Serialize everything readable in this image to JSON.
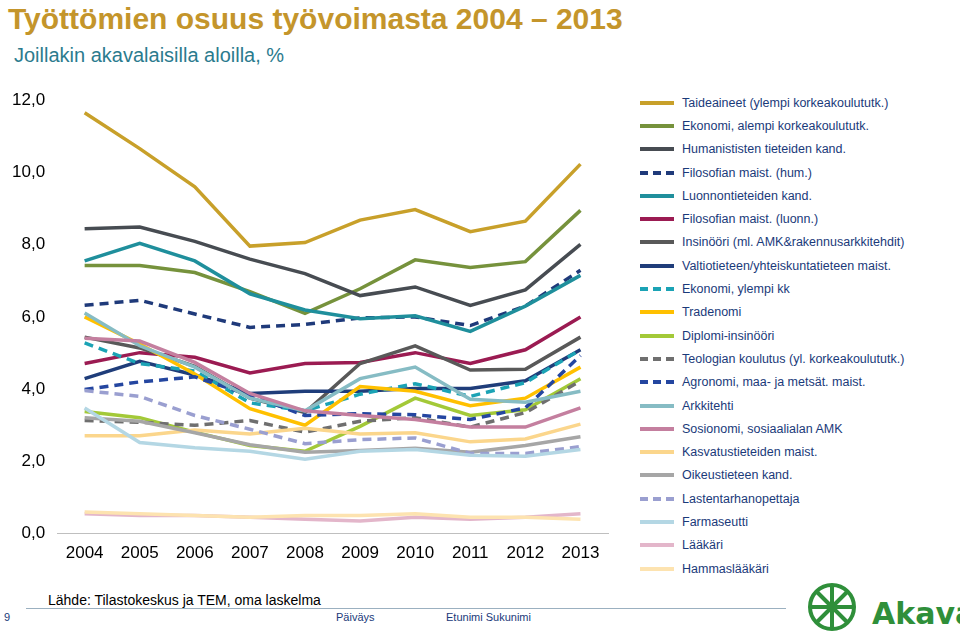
{
  "chart_data": {
    "type": "line",
    "title": "Työttömien osuus työvoimasta 2004 – 2013",
    "subtitle": "Joillakin akavalaisilla aloilla, %",
    "source": "Lähde: Tilastokeskus ja TEM, oma laskelma",
    "categories": [
      "2004",
      "2005",
      "2006",
      "2007",
      "2008",
      "2009",
      "2010",
      "2011",
      "2012",
      "2013"
    ],
    "ylim": [
      0,
      12
    ],
    "yticks": [
      {
        "value": 0,
        "label": "0,0"
      },
      {
        "value": 2,
        "label": "2,0"
      },
      {
        "value": 4,
        "label": "4,0"
      },
      {
        "value": 6,
        "label": "6,0"
      },
      {
        "value": 8,
        "label": "8,0"
      },
      {
        "value": 10,
        "label": "10,0"
      },
      {
        "value": 12,
        "label": "12,0"
      }
    ],
    "grid": false,
    "legend": "right",
    "series": [
      {
        "name": "Taideaineet (ylempi korkeakoulututk.)",
        "color": "#c8a02a",
        "line_style": "solid",
        "values": [
          11.65,
          10.66,
          9.6,
          7.96,
          8.06,
          8.68,
          8.97,
          8.36,
          8.65,
          10.23
        ]
      },
      {
        "name": "Ekonomi, alempi korkeakoulututk.",
        "color": "#76923c",
        "line_style": "solid",
        "values": [
          7.42,
          7.42,
          7.23,
          6.7,
          6.1,
          6.78,
          7.58,
          7.37,
          7.53,
          8.95
        ]
      },
      {
        "name": "Humanististen tieteiden kand.",
        "color": "#474c52",
        "line_style": "solid",
        "values": [
          8.44,
          8.49,
          8.09,
          7.6,
          7.2,
          6.59,
          6.83,
          6.32,
          6.75,
          8.01
        ]
      },
      {
        "name": "Filosofian maist. (hum.)",
        "color": "#1f3a7a",
        "line_style": "dashed",
        "values": [
          6.32,
          6.46,
          6.08,
          5.71,
          5.79,
          5.97,
          6.0,
          5.76,
          6.3,
          7.29
        ]
      },
      {
        "name": "Luonnontieteiden kand.",
        "color": "#1f8f9c",
        "line_style": "solid",
        "values": [
          7.55,
          8.04,
          7.55,
          6.64,
          6.19,
          5.95,
          6.03,
          5.6,
          6.3,
          7.15
        ]
      },
      {
        "name": "Filosofian maist. (luonn.)",
        "color": "#9b1b52",
        "line_style": "solid",
        "values": [
          4.71,
          5.01,
          4.88,
          4.45,
          4.71,
          4.74,
          5.01,
          4.71,
          5.09,
          6.0
        ]
      },
      {
        "name": "Insinööri (ml. AMK&rakennusarkkitehdit)",
        "color": "#595959",
        "line_style": "solid",
        "values": [
          5.44,
          5.14,
          4.63,
          3.75,
          3.35,
          4.71,
          5.2,
          4.53,
          4.55,
          5.44
        ]
      },
      {
        "name": "Valtiotieteen/yhteiskuntatieteen maist.",
        "color": "#1f3d7a",
        "line_style": "solid",
        "values": [
          4.29,
          4.77,
          4.39,
          3.88,
          3.94,
          3.94,
          4.02,
          4.02,
          4.23,
          5.09
        ]
      },
      {
        "name": "Ekonomi, ylempi kk",
        "color": "#1ba3b5",
        "line_style": "dashed",
        "values": [
          5.28,
          4.71,
          4.5,
          3.62,
          3.4,
          3.86,
          4.15,
          3.8,
          4.18,
          5.09
        ]
      },
      {
        "name": "Tradenomi",
        "color": "#ffc000",
        "line_style": "solid",
        "values": [
          6.0,
          5.25,
          4.42,
          3.46,
          3.0,
          4.07,
          3.94,
          3.54,
          3.75,
          4.61
        ]
      },
      {
        "name": "Diplomi-insinööri",
        "color": "#a3c938",
        "line_style": "solid",
        "values": [
          3.38,
          3.21,
          2.81,
          2.44,
          2.28,
          2.97,
          3.75,
          3.27,
          3.43,
          4.29
        ]
      },
      {
        "name": "Teologian koulutus (yl. korkeakoulututk.)",
        "color": "#6f6f6f",
        "line_style": "dashed",
        "values": [
          3.13,
          3.08,
          3.0,
          3.13,
          2.81,
          3.11,
          3.21,
          2.95,
          3.35,
          4.23
        ]
      },
      {
        "name": "Agronomi, maa- ja metsät. maist.",
        "color": "#2446a0",
        "line_style": "dashed",
        "values": [
          3.99,
          4.2,
          4.34,
          3.83,
          3.27,
          3.32,
          3.29,
          3.16,
          3.48,
          4.93
        ]
      },
      {
        "name": "Arkkitehti",
        "color": "#86bcc4",
        "line_style": "solid",
        "values": [
          6.11,
          5.2,
          4.61,
          3.75,
          3.4,
          4.29,
          4.61,
          3.72,
          3.64,
          3.94
        ]
      },
      {
        "name": "Sosionomi, sosiaalialan AMK",
        "color": "#c47f9f",
        "line_style": "solid",
        "values": [
          5.41,
          5.33,
          4.74,
          3.88,
          3.4,
          3.27,
          3.16,
          2.95,
          2.95,
          3.48
        ]
      },
      {
        "name": "Kasvatustieteiden maist.",
        "color": "#fbd68c",
        "line_style": "solid",
        "values": [
          2.71,
          2.71,
          2.87,
          2.76,
          2.92,
          2.76,
          2.79,
          2.54,
          2.62,
          3.03
        ]
      },
      {
        "name": "Oikeustieteen kand.",
        "color": "#a6a6a6",
        "line_style": "solid",
        "values": [
          3.21,
          3.11,
          2.79,
          2.46,
          2.25,
          2.3,
          2.36,
          2.25,
          2.44,
          2.68
        ]
      },
      {
        "name": "Lastentarhanopettaja",
        "color": "#9a9fd0",
        "line_style": "dashed",
        "values": [
          3.96,
          3.8,
          3.27,
          2.89,
          2.49,
          2.6,
          2.65,
          2.22,
          2.22,
          2.41
        ]
      },
      {
        "name": "Farmaseutti",
        "color": "#b4d7e4",
        "line_style": "solid",
        "values": [
          3.48,
          2.52,
          2.38,
          2.28,
          2.06,
          2.28,
          2.33,
          2.17,
          2.14,
          2.33
        ]
      },
      {
        "name": "Lääkäri",
        "color": "#e3b6ca",
        "line_style": "solid",
        "values": [
          0.55,
          0.5,
          0.5,
          0.45,
          0.4,
          0.35,
          0.45,
          0.4,
          0.45,
          0.55
        ]
      },
      {
        "name": "Hammaslääkäri",
        "color": "#fde3b0",
        "line_style": "solid",
        "values": [
          0.6,
          0.55,
          0.5,
          0.45,
          0.5,
          0.5,
          0.55,
          0.45,
          0.45,
          0.4
        ]
      }
    ]
  },
  "footer": {
    "page": "9",
    "date": "Päiväys",
    "author": "Etunimi Sukunimi",
    "logo": "Akava"
  }
}
